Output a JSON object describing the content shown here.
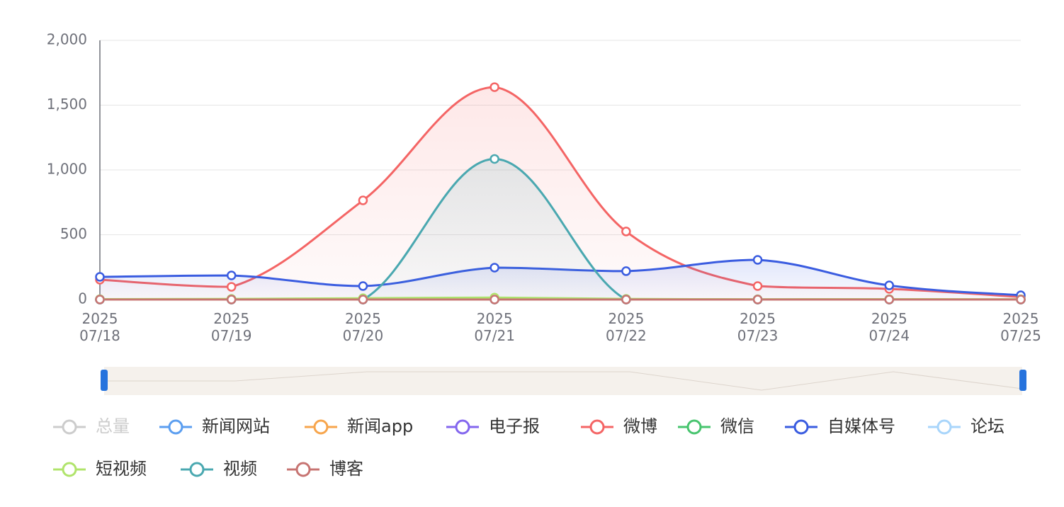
{
  "chart_data": {
    "type": "line",
    "smooth": true,
    "categories": [
      "2025\n07/18",
      "2025\n07/19",
      "2025\n07/20",
      "2025\n07/21",
      "2025\n07/22",
      "2025\n07/23",
      "2025\n07/24",
      "2025\n07/25"
    ],
    "ylim": [
      0,
      2000
    ],
    "yticks": [
      0,
      500,
      {
        "value": 1000,
        "label": "1,000"
      },
      {
        "value": 1500,
        "label": "1,500"
      },
      {
        "value": 2000,
        "label": "2,000"
      }
    ],
    "grid": true,
    "series": [
      {
        "name": "总量",
        "color": "#c8c8c8",
        "selected": false
      },
      {
        "name": "新闻网站",
        "color": "#5b9ef0",
        "values": [
          0,
          0,
          0,
          0,
          0,
          0,
          0,
          0
        ]
      },
      {
        "name": "新闻app",
        "color": "#f7a54c",
        "values": [
          0,
          0,
          0,
          0,
          0,
          0,
          0,
          0
        ]
      },
      {
        "name": "电子报",
        "color": "#8366ee",
        "values": [
          0,
          0,
          0,
          0,
          0,
          0,
          0,
          0
        ]
      },
      {
        "name": "微博",
        "color": "#f46565",
        "area": true,
        "values": [
          153,
          98,
          765,
          1639,
          525,
          104,
          82,
          20
        ]
      },
      {
        "name": "微信",
        "color": "#47c46e",
        "values": [
          0,
          0,
          0,
          0,
          0,
          0,
          0,
          0
        ]
      },
      {
        "name": "自媒体号",
        "color": "#3a5ce0",
        "area": true,
        "values": [
          175,
          186,
          104,
          246,
          219,
          306,
          109,
          33
        ]
      },
      {
        "name": "论坛",
        "color": "#a8d5fb",
        "values": [
          0,
          0,
          0,
          0,
          0,
          0,
          0,
          0
        ]
      },
      {
        "name": "短视频",
        "color": "#b0e46b",
        "values": [
          3,
          5,
          10,
          15,
          5,
          2,
          3,
          2
        ]
      },
      {
        "name": "视频",
        "color": "#4aa8b0",
        "area": true,
        "values": [
          0,
          0,
          0,
          1085,
          0,
          0,
          0,
          0
        ]
      },
      {
        "name": "博客",
        "color": "#c77472",
        "values": [
          0,
          0,
          0,
          0,
          0,
          0,
          0,
          0
        ]
      }
    ]
  }
}
